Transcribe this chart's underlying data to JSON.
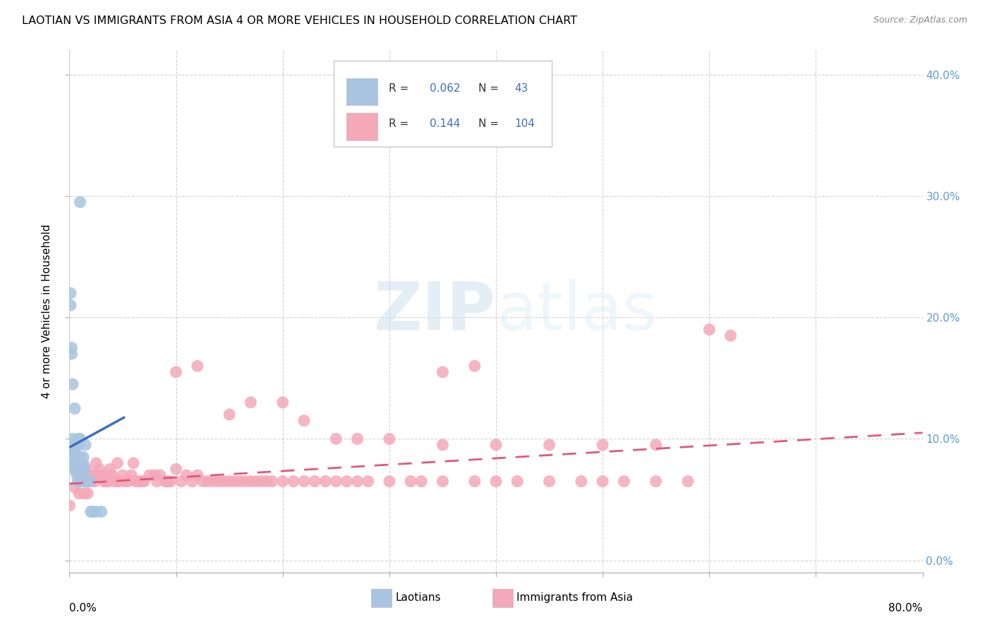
{
  "title": "LAOTIAN VS IMMIGRANTS FROM ASIA 4 OR MORE VEHICLES IN HOUSEHOLD CORRELATION CHART",
  "source": "Source: ZipAtlas.com",
  "ylabel": "4 or more Vehicles in Household",
  "xlim": [
    0.0,
    0.8
  ],
  "ylim": [
    -0.01,
    0.42
  ],
  "watermark_zip": "ZIP",
  "watermark_atlas": "atlas",
  "laotian_R": "0.062",
  "laotian_N": "43",
  "asian_R": "0.144",
  "asian_N": "104",
  "laotian_color": "#a8c4e0",
  "asian_color": "#f4a8b8",
  "trend_laotian_color": "#3a6fc4",
  "trend_asian_color": "#e05878",
  "lao_x": [
    0.001,
    0.001,
    0.002,
    0.002,
    0.003,
    0.003,
    0.004,
    0.004,
    0.004,
    0.005,
    0.005,
    0.005,
    0.006,
    0.006,
    0.006,
    0.007,
    0.007,
    0.008,
    0.008,
    0.009,
    0.009,
    0.009,
    0.01,
    0.01,
    0.01,
    0.011,
    0.011,
    0.012,
    0.012,
    0.013,
    0.013,
    0.014,
    0.015,
    0.015,
    0.016,
    0.017,
    0.018,
    0.019,
    0.02,
    0.022,
    0.025,
    0.03,
    0.01
  ],
  "lao_y": [
    0.22,
    0.21,
    0.175,
    0.17,
    0.145,
    0.1,
    0.09,
    0.085,
    0.075,
    0.125,
    0.09,
    0.08,
    0.095,
    0.08,
    0.075,
    0.085,
    0.07,
    0.1,
    0.065,
    0.095,
    0.085,
    0.065,
    0.1,
    0.085,
    0.08,
    0.075,
    0.065,
    0.07,
    0.065,
    0.085,
    0.08,
    0.075,
    0.095,
    0.065,
    0.065,
    0.065,
    0.065,
    0.065,
    0.04,
    0.04,
    0.04,
    0.04,
    0.295
  ],
  "asia_x": [
    0.0,
    0.005,
    0.007,
    0.009,
    0.01,
    0.012,
    0.014,
    0.015,
    0.016,
    0.017,
    0.018,
    0.019,
    0.02,
    0.022,
    0.024,
    0.025,
    0.027,
    0.028,
    0.03,
    0.032,
    0.033,
    0.035,
    0.037,
    0.038,
    0.04,
    0.042,
    0.044,
    0.045,
    0.047,
    0.05,
    0.052,
    0.055,
    0.058,
    0.06,
    0.062,
    0.065,
    0.068,
    0.07,
    0.075,
    0.08,
    0.082,
    0.085,
    0.09,
    0.092,
    0.095,
    0.1,
    0.105,
    0.11,
    0.115,
    0.12,
    0.125,
    0.13,
    0.135,
    0.14,
    0.145,
    0.15,
    0.155,
    0.16,
    0.165,
    0.17,
    0.175,
    0.18,
    0.185,
    0.19,
    0.2,
    0.21,
    0.22,
    0.23,
    0.24,
    0.25,
    0.26,
    0.27,
    0.28,
    0.3,
    0.32,
    0.33,
    0.35,
    0.38,
    0.4,
    0.42,
    0.45,
    0.48,
    0.5,
    0.52,
    0.55,
    0.58,
    0.6,
    0.62,
    0.35,
    0.38,
    0.1,
    0.12,
    0.15,
    0.17,
    0.2,
    0.22,
    0.25,
    0.27,
    0.3,
    0.35,
    0.4,
    0.45,
    0.5,
    0.55
  ],
  "asia_y": [
    0.045,
    0.06,
    0.075,
    0.055,
    0.065,
    0.07,
    0.055,
    0.065,
    0.075,
    0.055,
    0.065,
    0.07,
    0.065,
    0.07,
    0.065,
    0.08,
    0.07,
    0.075,
    0.07,
    0.065,
    0.07,
    0.065,
    0.065,
    0.075,
    0.07,
    0.065,
    0.065,
    0.08,
    0.065,
    0.07,
    0.065,
    0.065,
    0.07,
    0.08,
    0.065,
    0.065,
    0.065,
    0.065,
    0.07,
    0.07,
    0.065,
    0.07,
    0.065,
    0.065,
    0.065,
    0.075,
    0.065,
    0.07,
    0.065,
    0.07,
    0.065,
    0.065,
    0.065,
    0.065,
    0.065,
    0.065,
    0.065,
    0.065,
    0.065,
    0.065,
    0.065,
    0.065,
    0.065,
    0.065,
    0.065,
    0.065,
    0.065,
    0.065,
    0.065,
    0.065,
    0.065,
    0.065,
    0.065,
    0.065,
    0.065,
    0.065,
    0.065,
    0.065,
    0.065,
    0.065,
    0.065,
    0.065,
    0.065,
    0.065,
    0.065,
    0.065,
    0.19,
    0.185,
    0.155,
    0.16,
    0.155,
    0.16,
    0.12,
    0.13,
    0.13,
    0.115,
    0.1,
    0.1,
    0.1,
    0.095,
    0.095,
    0.095,
    0.095,
    0.095
  ],
  "lao_trend_x0": 0.0,
  "lao_trend_x1": 0.052,
  "lao_trend_y0": 0.093,
  "lao_trend_y1": 0.118,
  "asia_trend_x0": 0.0,
  "asia_trend_x1": 0.8,
  "asia_trend_y0": 0.063,
  "asia_trend_y1": 0.105
}
